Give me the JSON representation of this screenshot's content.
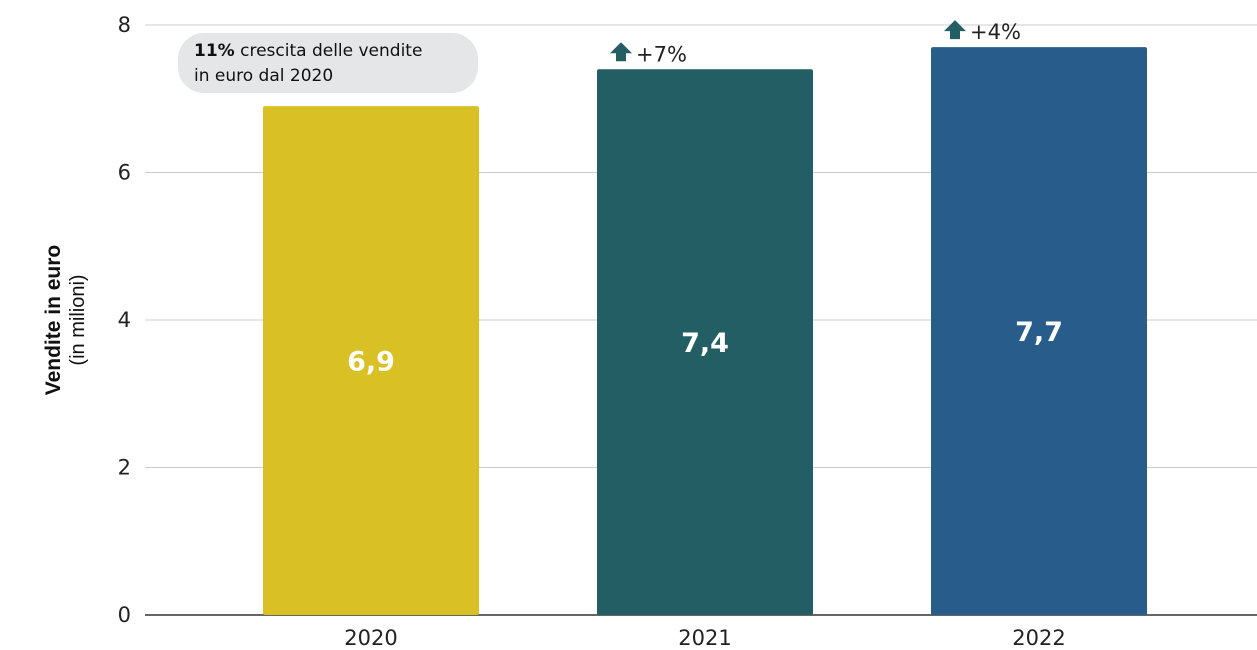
{
  "chart_data": {
    "type": "bar",
    "categories": [
      "2020",
      "2021",
      "2022"
    ],
    "values": [
      6.9,
      7.4,
      7.7
    ],
    "value_labels": [
      "6,9",
      "7,4",
      "7,7"
    ],
    "bar_colors": [
      "#d9c125",
      "#225e64",
      "#285c8a"
    ],
    "growth_labels": [
      "",
      "+7%",
      "+4%"
    ],
    "growth_arrow_color": "#225e64",
    "ylabel": "Vendite in euro",
    "ylabel_sub": "(in milioni)",
    "ylim": [
      0,
      8
    ],
    "yticks": [
      0,
      2,
      4,
      6,
      8
    ],
    "ytick_labels": [
      "0",
      "2",
      "4",
      "6",
      "8"
    ],
    "grid": true,
    "grid_color": "#cccccc",
    "annotation": {
      "highlight": "11%",
      "line1_rest": " crescita delle vendite",
      "line2": "in euro dal 2020",
      "background": "#e5e6e8"
    }
  }
}
